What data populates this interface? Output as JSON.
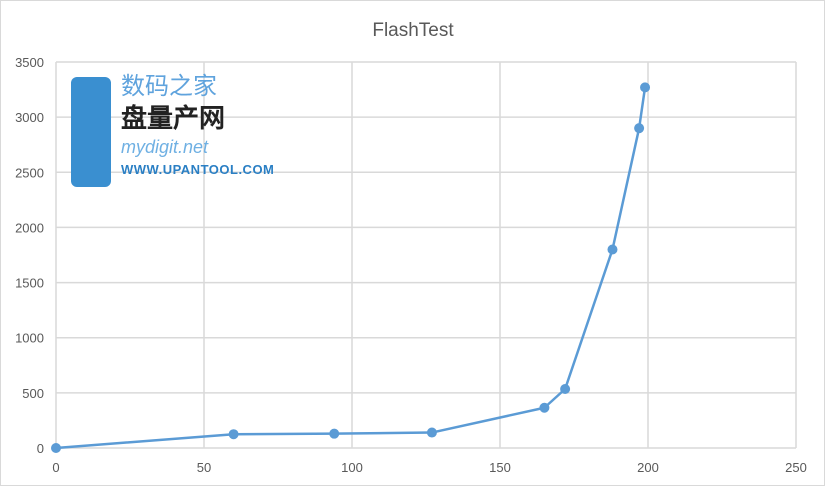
{
  "chart_data": {
    "type": "line",
    "title": "FlashTest",
    "xlabel": "",
    "ylabel": "",
    "xlim": [
      0,
      250
    ],
    "ylim": [
      0,
      3500
    ],
    "x_ticks": [
      0,
      50,
      100,
      150,
      200,
      250
    ],
    "y_ticks": [
      0,
      500,
      1000,
      1500,
      2000,
      2500,
      3000,
      3500
    ],
    "grid": true,
    "legend": "none",
    "series": [
      {
        "x": [
          0,
          60,
          94,
          127,
          165,
          172,
          188,
          197,
          199
        ],
        "y": [
          0,
          125,
          130,
          140,
          365,
          535,
          1800,
          2900,
          3270
        ],
        "color": "#5b9bd5",
        "markers": true
      }
    ]
  },
  "watermark": {
    "line1": "数码之家",
    "line2": "盘量产网",
    "line3": "mydigit.net",
    "line4": "WWW.UPANTOOL.COM"
  }
}
